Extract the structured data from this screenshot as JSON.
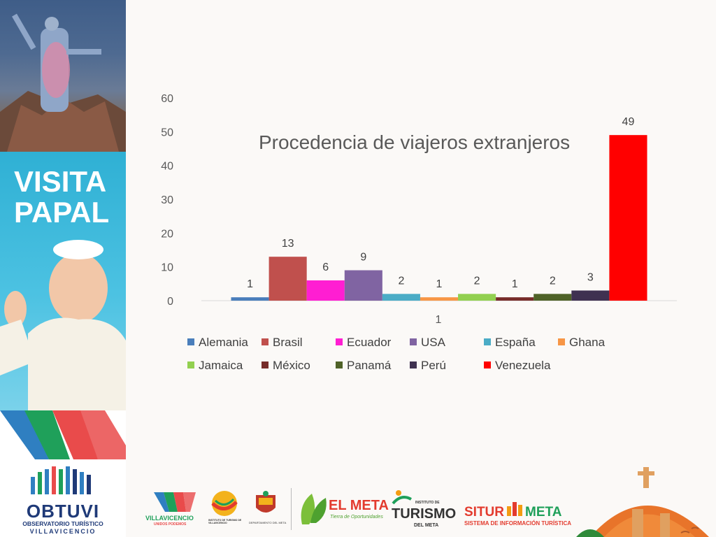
{
  "sidebar": {
    "title_line1": "VISITA",
    "title_line2": "PAPAL",
    "org_name": "OBTUVI",
    "org_sub1": "OBSERVATORIO TURÍSTICO",
    "org_sub2": "VILLAVICENCIO"
  },
  "footer": {
    "logo1": "VILLAVICENCIO",
    "logo1_sub": "UNIDOS PODEMOS",
    "logo2": "INSTITUTO DE TURISMO DE VILLAVICENCIO",
    "logo3": "DEPARTAMENTO DEL META",
    "logo4": "EL META",
    "logo4_sub": "Tierra de Oportunidades",
    "logo5_top": "INSTITUTO DE",
    "logo5": "TURISMO",
    "logo5_sub": "DEL META",
    "logo6a": "SITUR",
    "logo6b": "META",
    "logo6_sub": "SISTEMA DE INFORMACIÓN TURÍSTICA"
  },
  "chart_data": {
    "type": "bar",
    "title": "Procedencia de viajeros extranjeros",
    "categories": [
      "1"
    ],
    "series": [
      {
        "name": "Alemania",
        "values": [
          1
        ],
        "color": "#4a7ebb"
      },
      {
        "name": "Brasil",
        "values": [
          13
        ],
        "color": "#c0504d"
      },
      {
        "name": "Ecuador",
        "values": [
          6
        ],
        "color": "#ff1ed2"
      },
      {
        "name": "USA",
        "values": [
          9
        ],
        "color": "#8064a2"
      },
      {
        "name": "España",
        "values": [
          2
        ],
        "color": "#4bacc6"
      },
      {
        "name": "Ghana",
        "values": [
          1
        ],
        "color": "#f79646"
      },
      {
        "name": "Jamaica",
        "values": [
          2
        ],
        "color": "#92d050"
      },
      {
        "name": "México",
        "values": [
          1
        ],
        "color": "#772c2a"
      },
      {
        "name": "Panamá",
        "values": [
          2
        ],
        "color": "#4f6228"
      },
      {
        "name": "Perú",
        "values": [
          3
        ],
        "color": "#3f3151"
      },
      {
        "name": "Venezuela",
        "values": [
          49
        ],
        "color": "#ff0000"
      }
    ],
    "ylim": [
      0,
      60
    ],
    "yticks": [
      0,
      10,
      20,
      30,
      40,
      50,
      60
    ],
    "legend_position": "bottom",
    "grid": false
  }
}
